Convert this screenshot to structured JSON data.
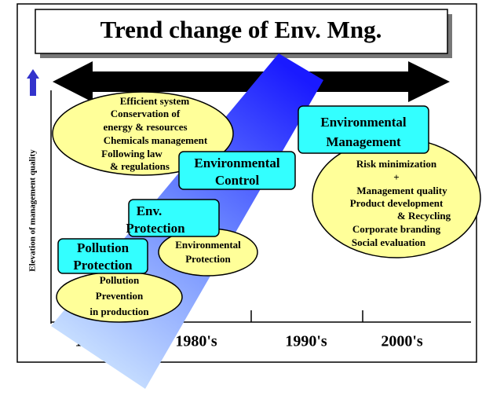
{
  "title": "Trend change of Env. Mng.",
  "y_axis_label": "Elevation of management quality",
  "year_labels": [
    "1970's",
    "1980's",
    "1990's",
    "2000's"
  ],
  "boxes": [
    {
      "lines": [
        "Environmental",
        "Management"
      ]
    },
    {
      "lines": [
        "Environmental",
        "Control"
      ]
    },
    {
      "lines": [
        "Env.",
        "Protection"
      ]
    },
    {
      "lines": [
        "Pollution",
        "Protection"
      ]
    }
  ],
  "ellipses": [
    {
      "lines": [
        "Efficient system",
        "Conservation of",
        "energy & resources",
        "Chemicals management",
        "Following law",
        "& regulations"
      ]
    },
    {
      "lines": [
        "Risk minimization",
        "+",
        "Management quality",
        "Product development",
        "& Recycling",
        "Corporate branding",
        "Social evaluation"
      ]
    },
    {
      "lines": [
        "Environmental",
        "Protection"
      ]
    },
    {
      "lines": [
        "Pollution",
        "Prevention",
        "in production"
      ]
    }
  ]
}
